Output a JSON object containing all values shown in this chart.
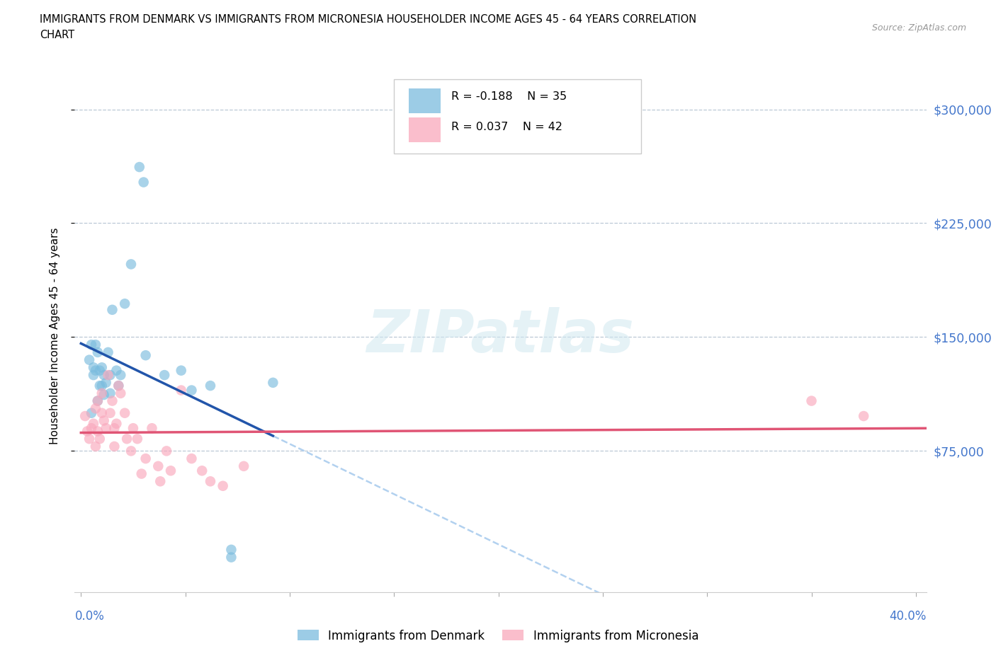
{
  "title_line1": "IMMIGRANTS FROM DENMARK VS IMMIGRANTS FROM MICRONESIA HOUSEHOLDER INCOME AGES 45 - 64 YEARS CORRELATION",
  "title_line2": "CHART",
  "source": "Source: ZipAtlas.com",
  "ylabel": "Householder Income Ages 45 - 64 years",
  "watermark": "ZIPatlas",
  "legend_denmark": "Immigrants from Denmark",
  "legend_micronesia": "Immigrants from Micronesia",
  "r_denmark": "R = -0.188",
  "n_denmark": "N = 35",
  "r_micronesia": "R = 0.037",
  "n_micronesia": "N = 42",
  "color_denmark": "#7BBCDE",
  "color_micronesia": "#F9A8BC",
  "line_color_denmark": "#2255AA",
  "line_color_micronesia": "#E05575",
  "line_color_denmark_dash": "#AACCEE",
  "ytick_values": [
    75000,
    150000,
    225000,
    300000
  ],
  "ytick_labels": [
    "$75,000",
    "$150,000",
    "$225,000",
    "$300,000"
  ],
  "xlim_min": -0.003,
  "xlim_max": 0.405,
  "ylim_min": -18000,
  "ylim_max": 320000,
  "background_color": "#ffffff",
  "denmark_x": [
    0.004,
    0.005,
    0.005,
    0.006,
    0.006,
    0.007,
    0.007,
    0.008,
    0.008,
    0.009,
    0.009,
    0.01,
    0.01,
    0.011,
    0.011,
    0.012,
    0.013,
    0.014,
    0.014,
    0.015,
    0.017,
    0.018,
    0.019,
    0.021,
    0.024,
    0.028,
    0.03,
    0.031,
    0.04,
    0.048,
    0.053,
    0.062,
    0.072,
    0.072,
    0.092
  ],
  "denmark_y": [
    135000,
    145000,
    100000,
    125000,
    130000,
    145000,
    128000,
    140000,
    108000,
    128000,
    118000,
    130000,
    118000,
    125000,
    112000,
    120000,
    140000,
    113000,
    125000,
    168000,
    128000,
    118000,
    125000,
    172000,
    198000,
    262000,
    252000,
    138000,
    125000,
    128000,
    115000,
    118000,
    10000,
    5000,
    120000
  ],
  "micronesia_x": [
    0.002,
    0.003,
    0.004,
    0.005,
    0.006,
    0.007,
    0.007,
    0.008,
    0.008,
    0.009,
    0.01,
    0.01,
    0.011,
    0.012,
    0.013,
    0.014,
    0.015,
    0.016,
    0.016,
    0.017,
    0.018,
    0.019,
    0.021,
    0.022,
    0.024,
    0.025,
    0.027,
    0.029,
    0.031,
    0.034,
    0.037,
    0.038,
    0.041,
    0.043,
    0.048,
    0.053,
    0.058,
    0.062,
    0.068,
    0.078,
    0.35,
    0.375
  ],
  "micronesia_y": [
    98000,
    88000,
    83000,
    90000,
    93000,
    78000,
    103000,
    88000,
    108000,
    83000,
    100000,
    113000,
    95000,
    90000,
    125000,
    100000,
    108000,
    90000,
    78000,
    93000,
    118000,
    113000,
    100000,
    83000,
    75000,
    90000,
    83000,
    60000,
    70000,
    90000,
    65000,
    55000,
    75000,
    62000,
    115000,
    70000,
    62000,
    55000,
    52000,
    65000,
    108000,
    98000
  ]
}
